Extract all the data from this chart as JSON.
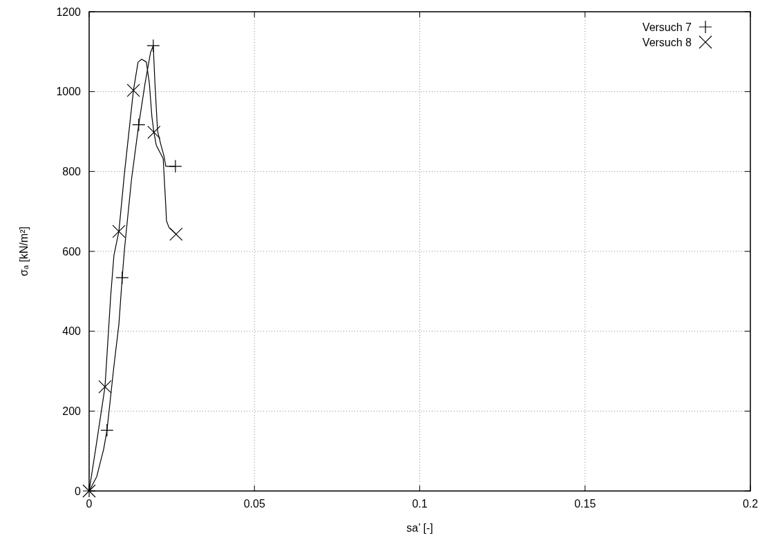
{
  "chart_data": {
    "type": "line",
    "xlabel": "sa’ [-]",
    "ylabel": "σₐ [kN/m²]",
    "xlim": [
      0,
      0.2
    ],
    "xticks": [
      0,
      0.05,
      0.1,
      0.15,
      0.2
    ],
    "ylim": [
      0,
      1200
    ],
    "yticks": [
      0,
      200,
      400,
      600,
      800,
      1000,
      1200
    ],
    "grid": true,
    "legend": "top right",
    "line_style": "solid",
    "series": [
      {
        "type": "line",
        "color": "#000000",
        "x": [
          0,
          0.0023,
          0.0044,
          0.0054,
          0.0075,
          0.009,
          0.01,
          0.0107,
          0.0128,
          0.015,
          0.0169,
          0.0186,
          0.0194,
          0.0199,
          0.0207,
          0.0217,
          0.0226,
          0.0232,
          0.024,
          0.0261
        ],
        "values": [
          0,
          36,
          105,
          152,
          313,
          417,
          534,
          606,
          779,
          917,
          1020,
          1099,
          1115,
          1022,
          901,
          867,
          840,
          813,
          813,
          813
        ]
      },
      {
        "type": "line",
        "color": "#000000",
        "x": [
          0,
          0.0023,
          0.0048,
          0.0065,
          0.0075,
          0.009,
          0.0107,
          0.0134,
          0.0148,
          0.0159,
          0.0173,
          0.0182,
          0.019,
          0.0196,
          0.0203,
          0.0224,
          0.0232,
          0.0234,
          0.0242,
          0.0263
        ],
        "values": [
          0,
          123,
          261,
          486,
          590,
          650,
          797,
          1003,
          1074,
          1081,
          1074,
          1022,
          936,
          898,
          866,
          832,
          711,
          676,
          659,
          643
        ]
      },
      {
        "type": "scatter",
        "name": "Versuch 7",
        "color": "#000000",
        "marker": "plus",
        "x": [
          0,
          0.0054,
          0.01,
          0.015,
          0.0194,
          0.0261
        ],
        "values": [
          0,
          152,
          534,
          917,
          1115,
          813
        ]
      },
      {
        "type": "scatter",
        "name": "Versuch 8",
        "color": "#000000",
        "marker": "cross",
        "x": [
          0,
          0.0048,
          0.009,
          0.0134,
          0.0196,
          0.0263
        ],
        "values": [
          0,
          261,
          650,
          1003,
          898,
          643
        ]
      }
    ]
  }
}
